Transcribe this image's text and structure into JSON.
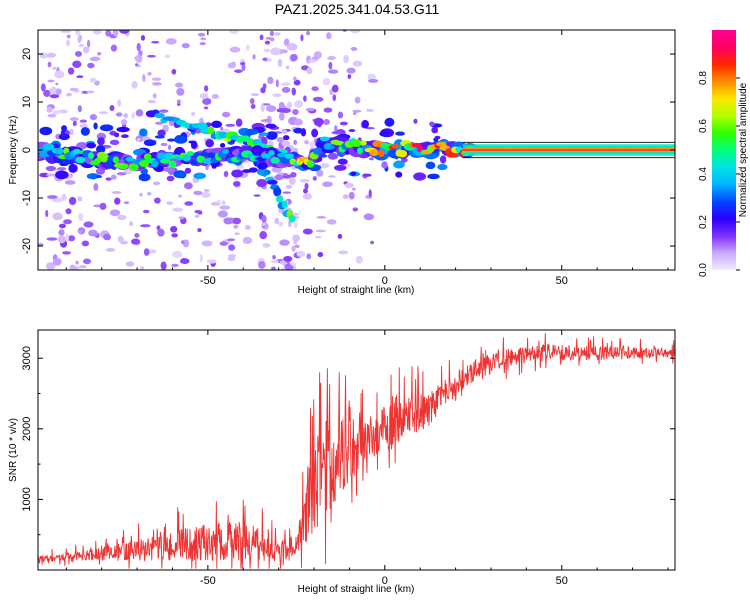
{
  "title": "PAZ1.2025.341.04.53.G11",
  "chart_data": [
    {
      "type": "heatmap",
      "xlabel": "Height of straight line (km)",
      "ylabel": "Frequency (Hz)",
      "xlim": [
        -98,
        82
      ],
      "ylim": [
        -25,
        25
      ],
      "xticks": [
        -50,
        0,
        50
      ],
      "yticks": [
        -20,
        -10,
        0,
        10,
        20
      ],
      "colorbar": {
        "label": "Normalized spectral amplitude",
        "range": [
          0,
          1
        ],
        "ticks": [
          0.0,
          0.2,
          0.4,
          0.6,
          0.8
        ],
        "colors": [
          "#f3eaff",
          "#c9a9ff",
          "#7d2fff",
          "#2b00ff",
          "#0044ff",
          "#00b4ff",
          "#00e4e4",
          "#00ff7a",
          "#33ff00",
          "#b2ff00",
          "#ffe600",
          "#ff8c00",
          "#ff2600",
          "#ff0060",
          "#ff0095"
        ]
      },
      "ridge": [
        {
          "x": -98,
          "f": 0,
          "a": 0.45
        },
        {
          "x": -90,
          "f": -1,
          "a": 0.55
        },
        {
          "x": -80,
          "f": -2,
          "a": 0.5
        },
        {
          "x": -70,
          "f": -2.5,
          "a": 0.45
        },
        {
          "x": -60,
          "f": -2,
          "a": 0.5
        },
        {
          "x": -50,
          "f": -1.5,
          "a": 0.45
        },
        {
          "x": -40,
          "f": -1,
          "a": 0.45
        },
        {
          "x": -30,
          "f": -1.5,
          "a": 0.4
        },
        {
          "x": -22,
          "f": -3,
          "a": 0.7
        },
        {
          "x": -18,
          "f": 1.5,
          "a": 0.45
        },
        {
          "x": -10,
          "f": 1,
          "a": 0.55
        },
        {
          "x": -5,
          "f": 0.5,
          "a": 0.55
        },
        {
          "x": 0,
          "f": 0,
          "a": 0.75
        },
        {
          "x": 10,
          "f": 0.5,
          "a": 0.8
        },
        {
          "x": 20,
          "f": 0,
          "a": 0.7
        },
        {
          "x": 30,
          "f": 0,
          "a": 0.9
        },
        {
          "x": 50,
          "f": 0,
          "a": 0.9
        },
        {
          "x": 82,
          "f": 0,
          "a": 0.9
        }
      ],
      "upper_branch": [
        {
          "x": -65,
          "f": 7,
          "a": 0.3
        },
        {
          "x": -55,
          "f": 5,
          "a": 0.4
        },
        {
          "x": -45,
          "f": 3,
          "a": 0.55
        },
        {
          "x": -35,
          "f": 1,
          "a": 0.45
        },
        {
          "x": -25,
          "f": -2,
          "a": 0.5
        }
      ],
      "lower_branch": [
        {
          "x": -35,
          "f": -3,
          "a": 0.35
        },
        {
          "x": -32,
          "f": -7,
          "a": 0.35
        },
        {
          "x": -29,
          "f": -11,
          "a": 0.4
        },
        {
          "x": -27,
          "f": -14,
          "a": 0.55
        }
      ]
    },
    {
      "type": "line",
      "xlabel": "Height of straight line (km)",
      "ylabel": "SNR (10 * v/v)",
      "xlim": [
        -98,
        82
      ],
      "ylim": [
        0,
        3400
      ],
      "xticks": [
        -50,
        0,
        50
      ],
      "yticks": [
        1000,
        2000,
        3000
      ],
      "color": "#ee3333",
      "envelope": [
        {
          "x": -98,
          "base": 150,
          "amp": 80
        },
        {
          "x": -85,
          "base": 200,
          "amp": 120
        },
        {
          "x": -70,
          "base": 280,
          "amp": 250
        },
        {
          "x": -55,
          "base": 380,
          "amp": 400
        },
        {
          "x": -40,
          "base": 420,
          "amp": 500
        },
        {
          "x": -30,
          "base": 300,
          "amp": 300
        },
        {
          "x": -25,
          "base": 250,
          "amp": 180
        },
        {
          "x": -22,
          "base": 900,
          "amp": 900
        },
        {
          "x": -17,
          "base": 1500,
          "amp": 1200
        },
        {
          "x": -10,
          "base": 1700,
          "amp": 800
        },
        {
          "x": -5,
          "base": 1850,
          "amp": 500
        },
        {
          "x": 5,
          "base": 2200,
          "amp": 600
        },
        {
          "x": 12,
          "base": 2250,
          "amp": 400
        },
        {
          "x": 20,
          "base": 2650,
          "amp": 300
        },
        {
          "x": 30,
          "base": 2950,
          "amp": 250
        },
        {
          "x": 45,
          "base": 3080,
          "amp": 200
        },
        {
          "x": 65,
          "base": 3070,
          "amp": 150
        },
        {
          "x": 82,
          "base": 3070,
          "amp": 130
        }
      ]
    }
  ]
}
